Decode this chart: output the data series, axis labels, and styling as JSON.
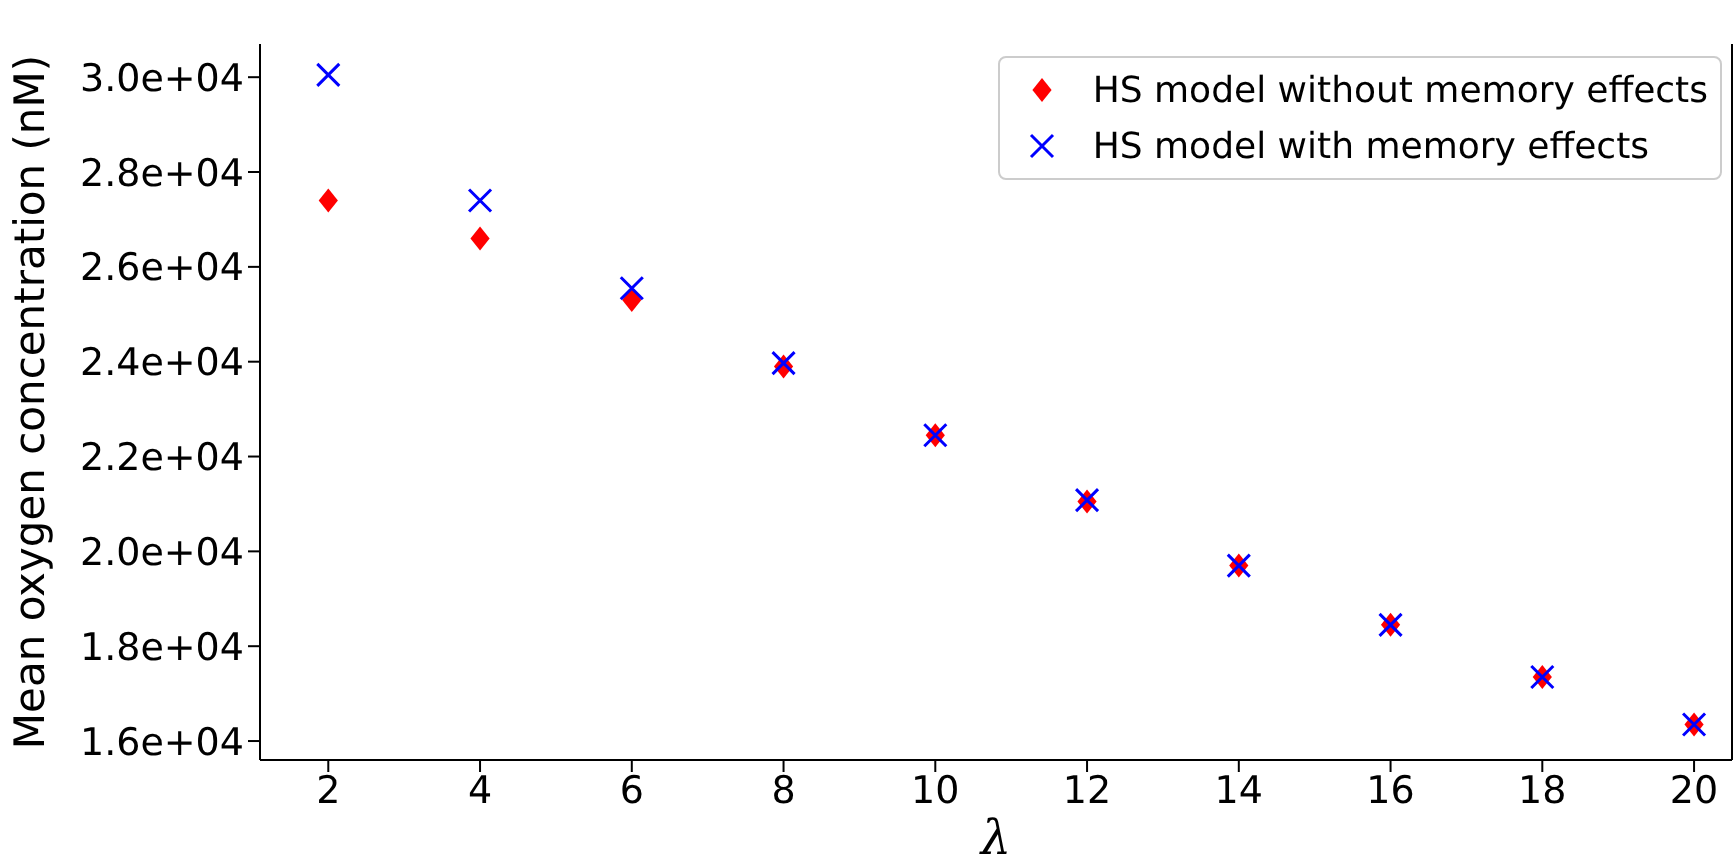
{
  "chart_data": {
    "type": "scatter",
    "xlabel": "λ",
    "ylabel": "Mean oxygen concentration (nM)",
    "x": [
      2,
      4,
      6,
      8,
      10,
      12,
      14,
      16,
      18,
      20
    ],
    "series": [
      {
        "name": "HS model without memory effects",
        "color": "#ff0000",
        "marker": "diamond",
        "values": [
          27400,
          26600,
          25300,
          23900,
          22450,
          21050,
          19700,
          18450,
          17350,
          16350
        ]
      },
      {
        "name": "HS model with memory effects",
        "color": "#0000ff",
        "marker": "cross",
        "values": [
          30050,
          27400,
          25550,
          23970,
          22450,
          21080,
          19700,
          18450,
          17350,
          16350
        ]
      }
    ],
    "xlim": [
      1.1,
      20.5
    ],
    "xticks": [
      2,
      4,
      6,
      8,
      10,
      12,
      14,
      16,
      18,
      20
    ],
    "ylim": [
      15600,
      30700
    ],
    "yticks": [
      {
        "value": 16000,
        "label": "1.6e+04"
      },
      {
        "value": 18000,
        "label": "1.8e+04"
      },
      {
        "value": 20000,
        "label": "2.0e+04"
      },
      {
        "value": 22000,
        "label": "2.2e+04"
      },
      {
        "value": 24000,
        "label": "2.4e+04"
      },
      {
        "value": 26000,
        "label": "2.6e+04"
      },
      {
        "value": 28000,
        "label": "2.8e+04"
      },
      {
        "value": 30000,
        "label": "3.0e+04"
      }
    ],
    "grid": false,
    "legend": "top right"
  }
}
